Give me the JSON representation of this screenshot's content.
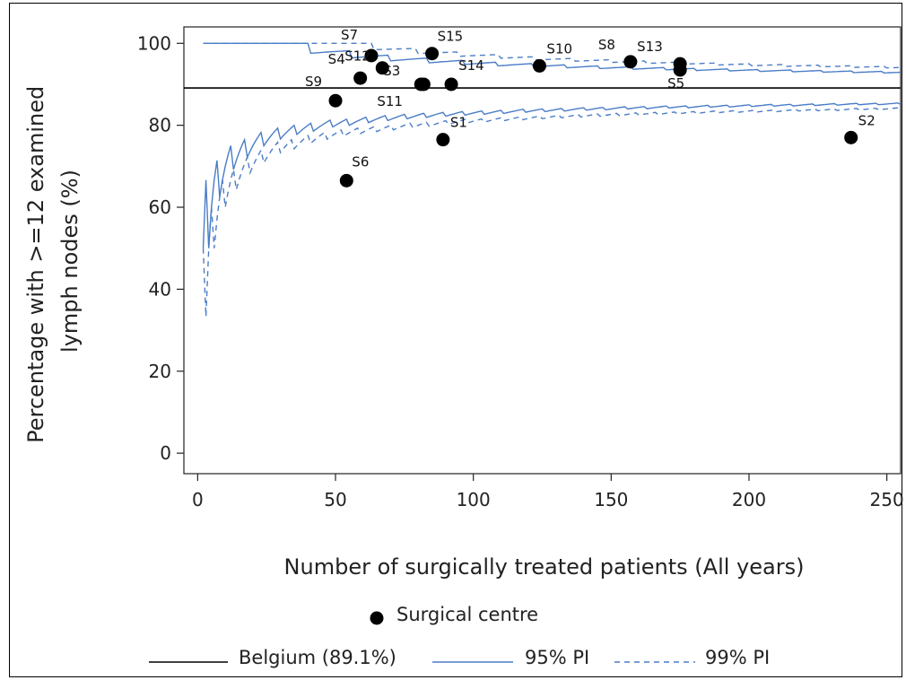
{
  "chart_data": {
    "type": "scatter",
    "title": "",
    "xlabel": "Number of surgically treated patients (All years)",
    "ylabel_lines": [
      "Percentage with >=12 examined",
      "lymph nodes (%)"
    ],
    "xlim": [
      -5,
      255
    ],
    "ylim": [
      -5,
      104
    ],
    "xticks": [
      0,
      50,
      100,
      150,
      200,
      250
    ],
    "yticks": [
      0,
      20,
      40,
      60,
      80,
      100
    ],
    "reference_line": {
      "name": "Belgium (89.1%)",
      "value": 89.1,
      "color": "#000000"
    },
    "limits": {
      "p_ref": 0.891,
      "pi95_z": 1.96,
      "pi99_z": 2.576,
      "color": "#4a7cc7"
    },
    "points": [
      {
        "label": "S1",
        "x": 89,
        "y": 76.5
      },
      {
        "label": "S2",
        "x": 237,
        "y": 77
      },
      {
        "label": "S3",
        "x": 81,
        "y": 90
      },
      {
        "label": "S4",
        "x": 59,
        "y": 91.5
      },
      {
        "label": "S5",
        "x": 175,
        "y": 93.5
      },
      {
        "label": "S6",
        "x": 54,
        "y": 66.5
      },
      {
        "label": "S7",
        "x": 63,
        "y": 97
      },
      {
        "label": "S8",
        "x": 157,
        "y": 95.5
      },
      {
        "label": "S9",
        "x": 50,
        "y": 86
      },
      {
        "label": "S10",
        "x": 124,
        "y": 94.5
      },
      {
        "label": "S11",
        "x": 82,
        "y": 90
      },
      {
        "label": "S12",
        "x": 67,
        "y": 94
      },
      {
        "label": "S13",
        "x": 175,
        "y": 95
      },
      {
        "label": "S14",
        "x": 92,
        "y": 90
      },
      {
        "label": "S15",
        "x": 85,
        "y": 97.5
      }
    ],
    "legend": [
      {
        "key": "centre",
        "label": "Surgical centre"
      },
      {
        "key": "belgium",
        "label": "Belgium (89.1%)"
      },
      {
        "key": "pi95",
        "label": "95% PI"
      },
      {
        "key": "pi99",
        "label": "99% PI"
      }
    ],
    "series_colors": {
      "points": "#000000",
      "reference": "#000000",
      "pi": "#4a7cc7"
    }
  }
}
